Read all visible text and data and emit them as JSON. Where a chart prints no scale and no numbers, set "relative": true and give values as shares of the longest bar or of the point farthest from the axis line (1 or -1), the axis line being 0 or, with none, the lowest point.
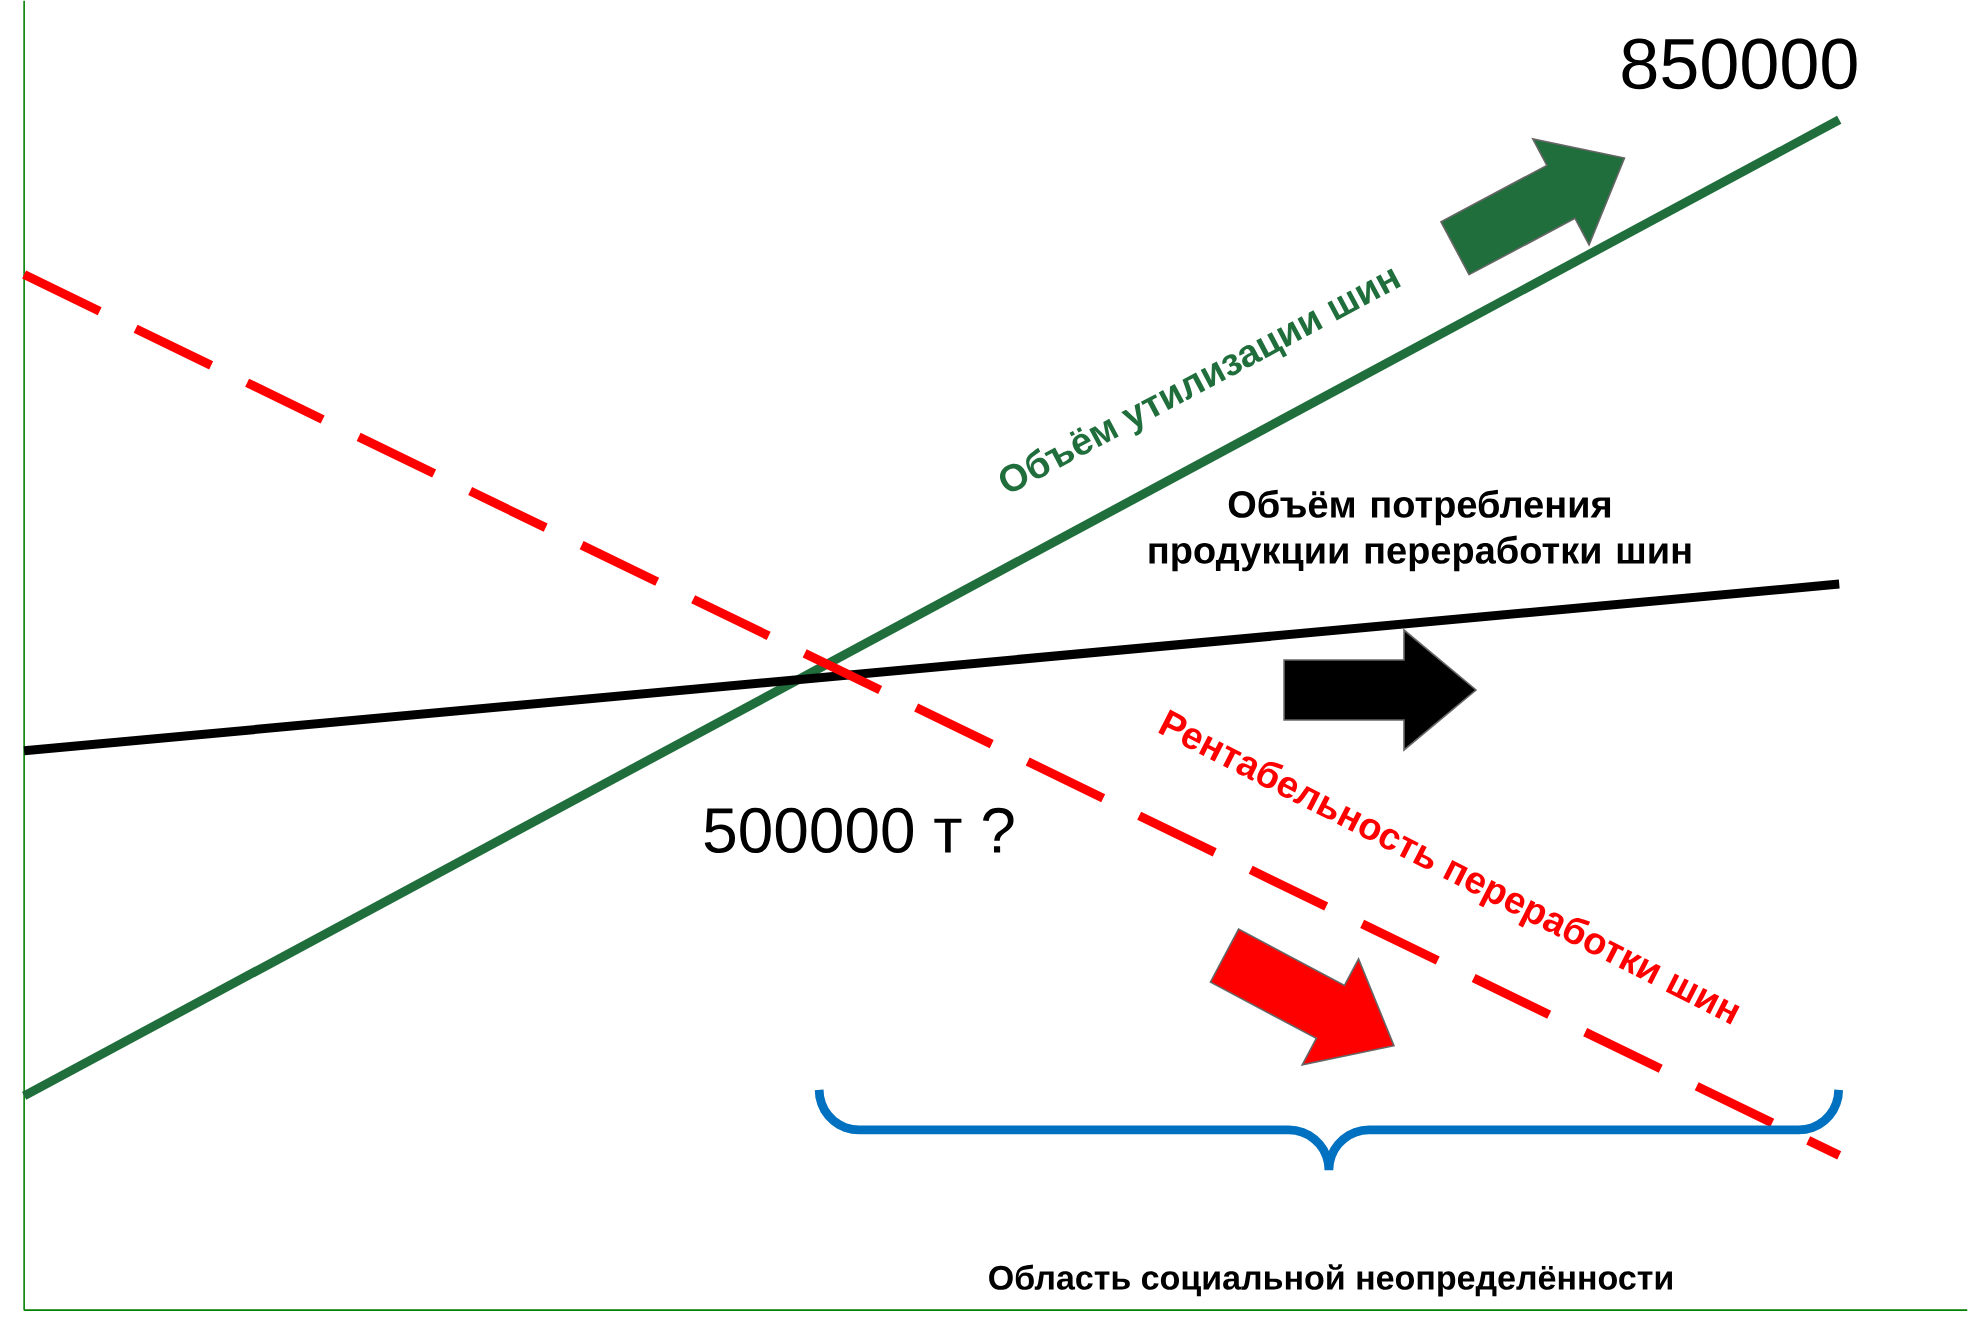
{
  "chart_data": {
    "type": "line",
    "relative": true,
    "categories": [
      null,
      null
    ],
    "series": [
      {
        "name": "Объём утилизации шин",
        "color": "#1f6e3c",
        "values": [
          0.18,
          1
        ],
        "line_style": "solid"
      },
      {
        "name": "Объём потребления продукции переработки шин",
        "color": "#000000",
        "values": [
          0.47,
          0.61
        ],
        "line_style": "solid"
      },
      {
        "name": "Рентабельность переработки шин",
        "color": "#ff0000",
        "values": [
          0.87,
          0.13
        ],
        "line_style": "dashed"
      }
    ],
    "annotations": [
      "850000",
      "500000 т ?",
      "Область социальной неопределённости"
    ]
  }
}
